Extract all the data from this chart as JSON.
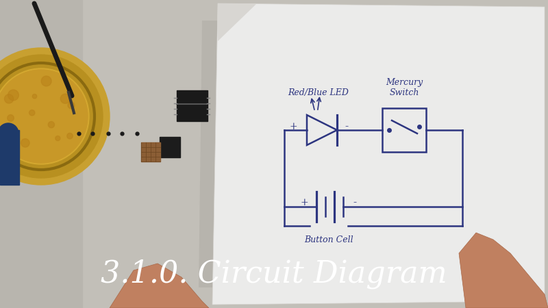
{
  "title": "3.1.0. Circuit Diagram",
  "title_color": "#ffffff",
  "title_fontsize": 32,
  "bg_color": "#c8c5be",
  "paper_color": "#edecea",
  "circuit_color": "#2d3580",
  "circuit_lw": 1.5,
  "labels": {
    "led": "Red/Blue LED",
    "switch": "Mercury\nSwitch",
    "battery": "Button Cell"
  }
}
